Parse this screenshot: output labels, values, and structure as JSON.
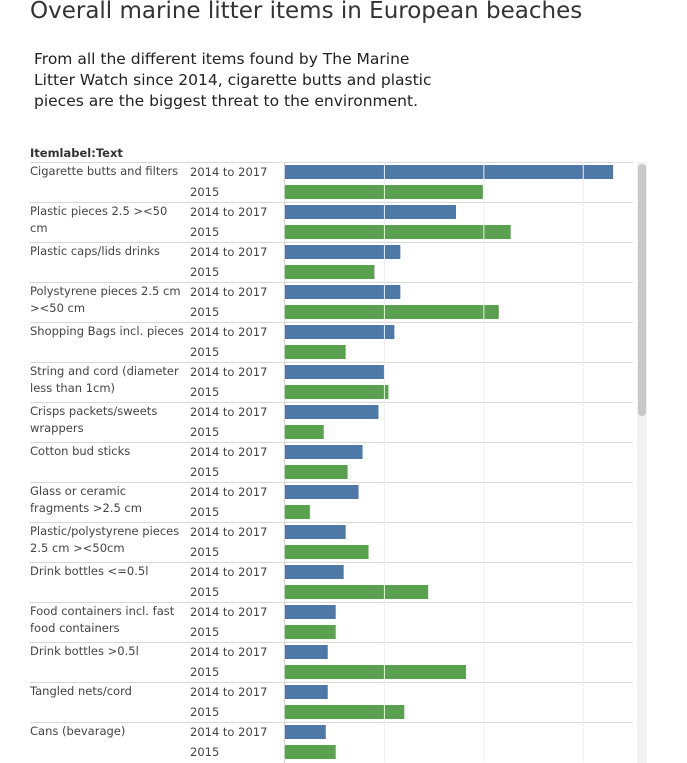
{
  "chart_data": {
    "type": "bar",
    "orientation": "horizontal",
    "title": "Overall marine litter items in European beaches",
    "subtitle": "From all the different items found by The Marine Litter Watch since 2014, cigarette butts and plastic pieces are the biggest threat to the environment.",
    "category_header": "Itemlabel:Text",
    "categories": [
      "Cigarette butts and filters",
      "Plastic pieces 2.5 ><50 cm",
      "Plastic caps/lids drinks",
      "Polystyrene pieces 2.5 cm ><50 cm",
      "Shopping Bags incl. pieces",
      "String and cord (diameter less than 1cm)",
      "Crisps packets/sweets wrappers",
      "Cotton bud sticks",
      "Glass or ceramic fragments >2.5 cm",
      "Plastic/polystyrene pieces 2.5 cm ><50cm",
      "Drink bottles <=0.5l",
      "Food containers incl. fast food containers",
      "Drink bottles >0.5l",
      "Tangled nets/cord",
      "Cans (bevarage)"
    ],
    "series": [
      {
        "name": "2014 to 2017",
        "color": "#4e79a7",
        "values": [
          330,
          172,
          116,
          116,
          110,
          100,
          94,
          78,
          74,
          61,
          59,
          51,
          43,
          43,
          41
        ]
      },
      {
        "name": "2015",
        "color": "#59a14f",
        "values": [
          199,
          227,
          90,
          215,
          61,
          104,
          39,
          63,
          25,
          84,
          144,
          51,
          182,
          120,
          51
        ]
      }
    ],
    "xlim": [
      0,
      350
    ],
    "grid_lines": [
      100,
      200,
      300
    ],
    "grid": true
  }
}
